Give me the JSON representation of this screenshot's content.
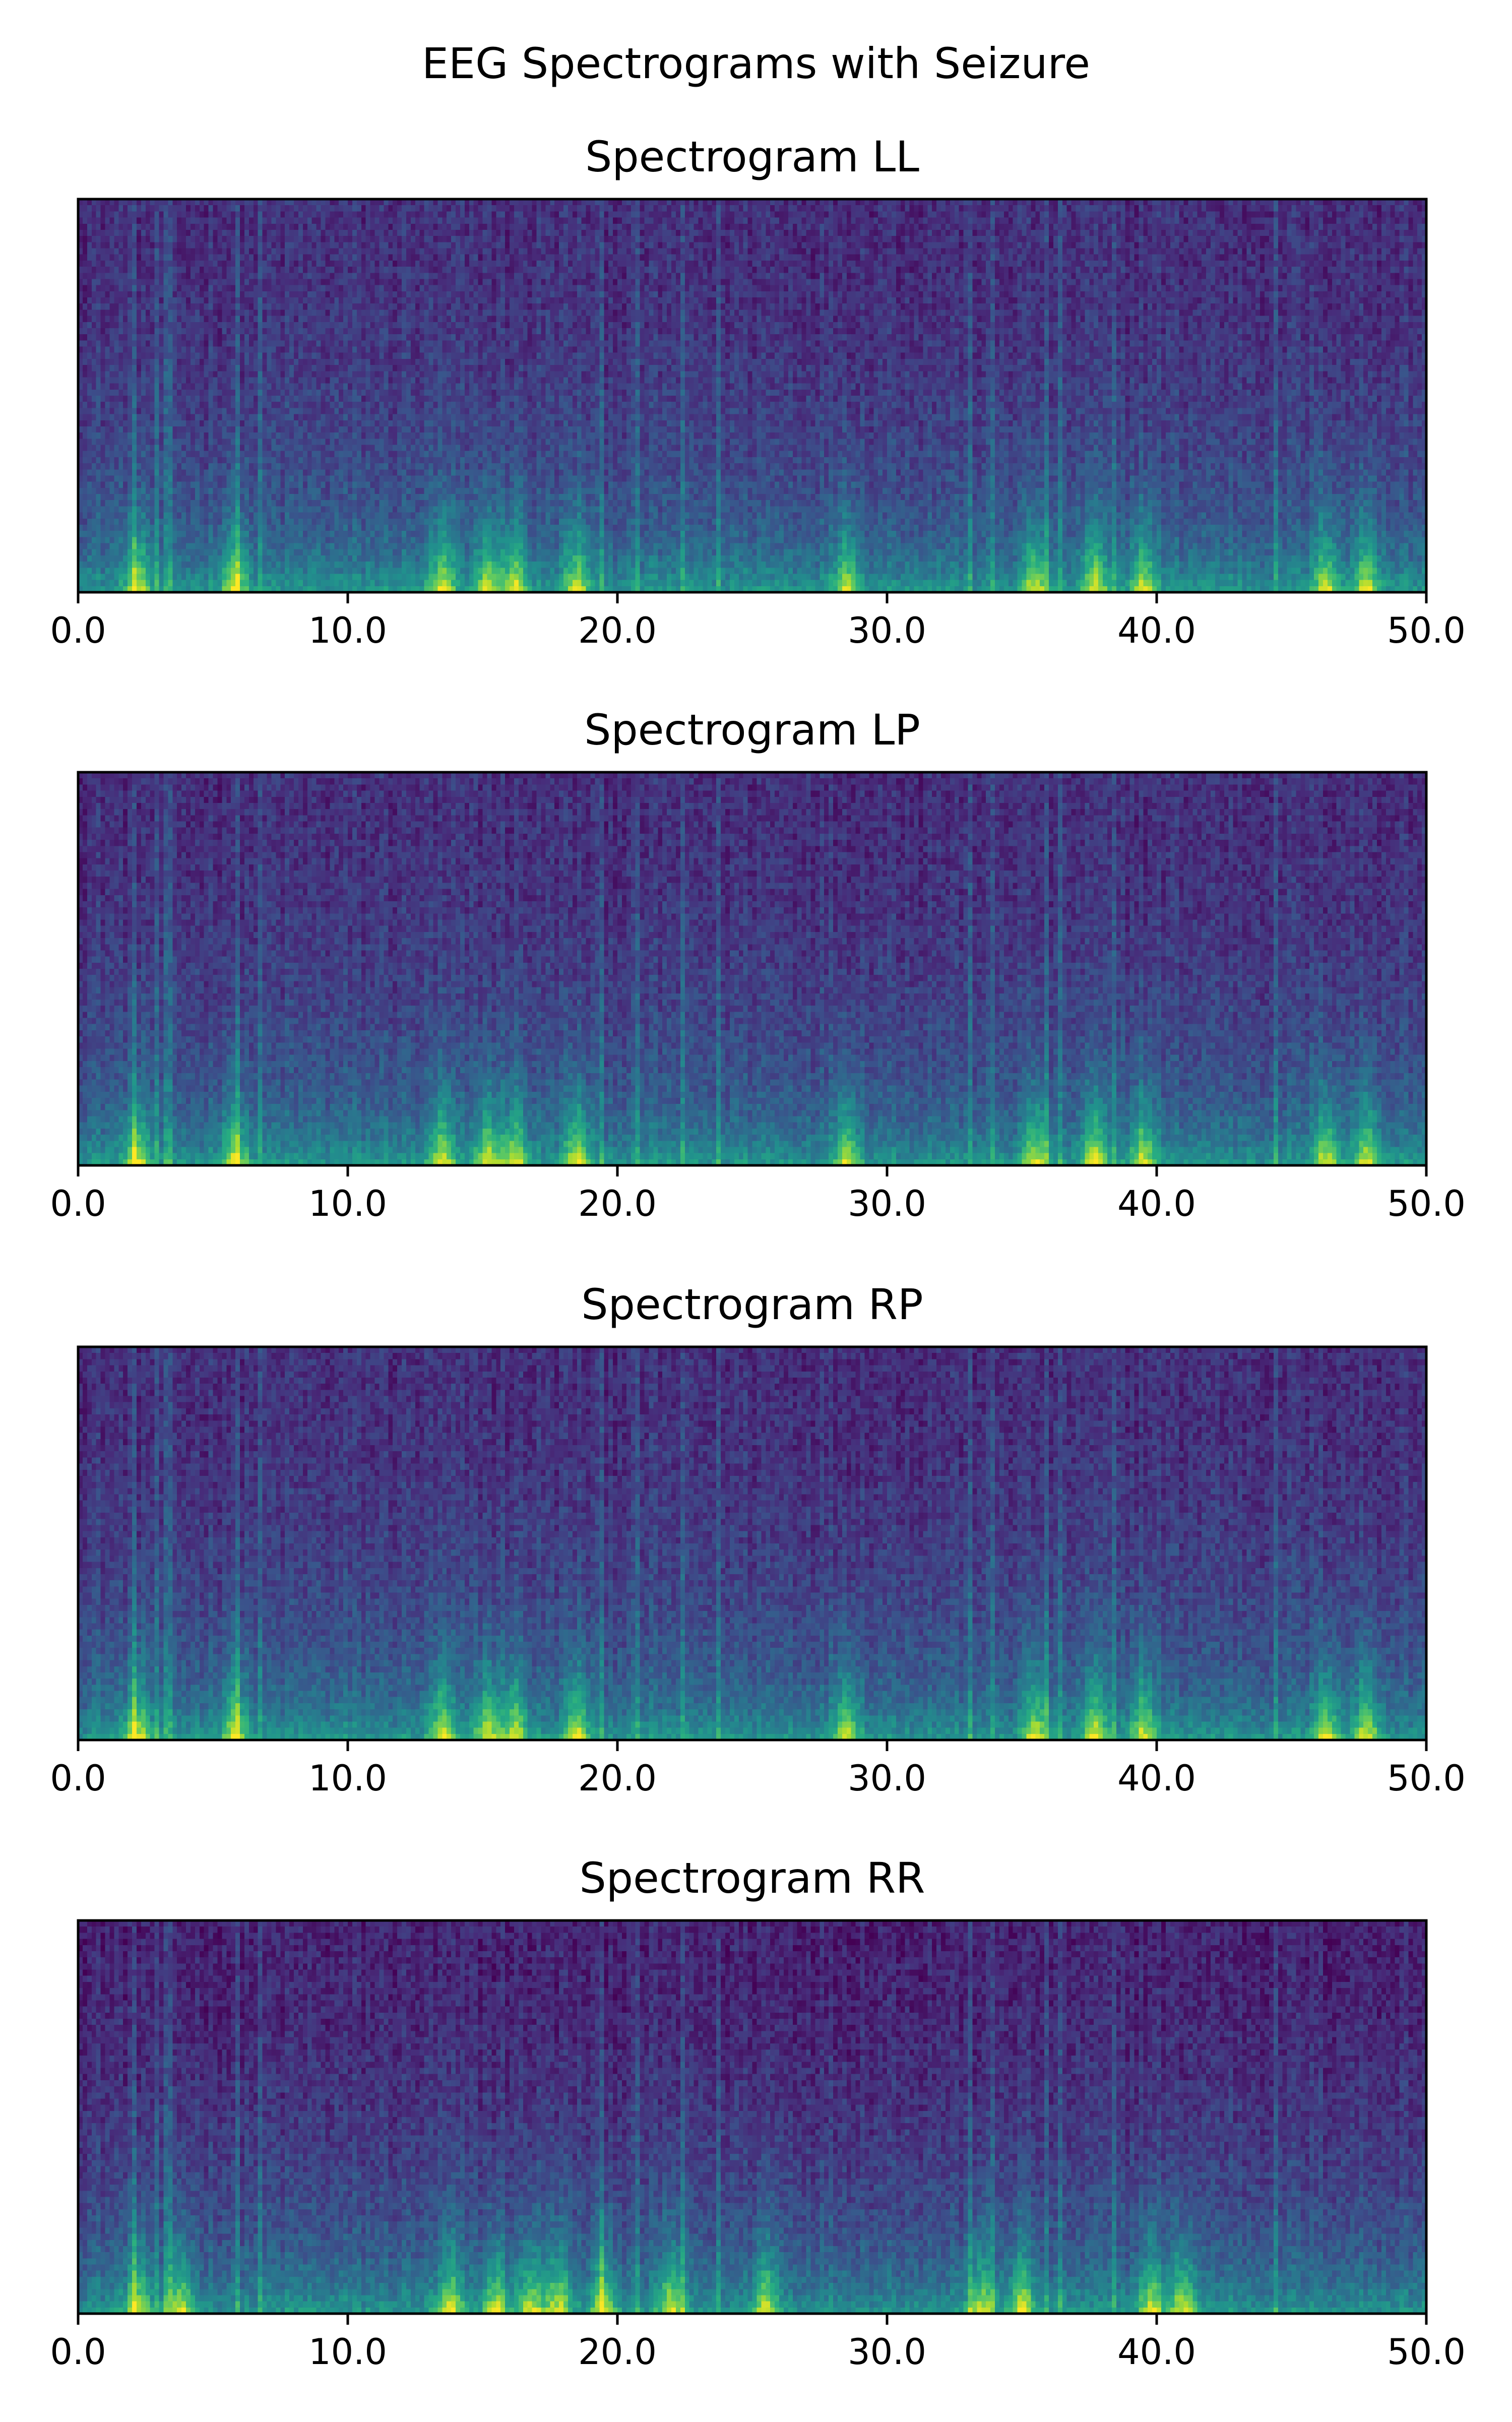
{
  "figure": {
    "title": "EEG Spectrograms with Seizure"
  },
  "chart_data": [
    {
      "type": "heatmap",
      "title": "Spectrogram LL",
      "xlabel": "",
      "ylabel": "",
      "xlim": [
        0,
        50
      ],
      "x_ticks": [
        "0.0",
        "10.0",
        "20.0",
        "30.0",
        "40.0",
        "50.0"
      ],
      "y_ticks": [],
      "colormap": "viridis",
      "grid": false,
      "description_of_values": "rows = frequency bins (low at bottom), columns = time; bright bands near bottom",
      "bright_time_columns": [
        2.2,
        5.8,
        13.5,
        15.2,
        16.2,
        18.5,
        28.5,
        35.5,
        37.7,
        39.5,
        46.3,
        47.8
      ]
    },
    {
      "type": "heatmap",
      "title": "Spectrogram LP",
      "xlabel": "",
      "ylabel": "",
      "xlim": [
        0,
        50
      ],
      "x_ticks": [
        "0.0",
        "10.0",
        "20.0",
        "30.0",
        "40.0",
        "50.0"
      ],
      "y_ticks": [],
      "colormap": "viridis",
      "grid": false,
      "bright_time_columns": [
        2.2,
        5.8,
        13.5,
        15.2,
        16.2,
        18.5,
        28.5,
        35.5,
        37.7,
        39.5,
        46.3,
        47.8
      ]
    },
    {
      "type": "heatmap",
      "title": "Spectrogram RP",
      "xlabel": "",
      "ylabel": "",
      "xlim": [
        0,
        50
      ],
      "x_ticks": [
        "0.0",
        "10.0",
        "20.0",
        "30.0",
        "40.0",
        "50.0"
      ],
      "y_ticks": [],
      "colormap": "viridis",
      "grid": false,
      "bright_time_columns": [
        2.2,
        5.8,
        13.5,
        15.2,
        16.2,
        18.5,
        28.5,
        35.5,
        37.7,
        39.5,
        46.3,
        47.8
      ]
    },
    {
      "type": "heatmap",
      "title": "Spectrogram RR",
      "xlabel": "",
      "ylabel": "",
      "xlim": [
        0,
        50
      ],
      "x_ticks": [
        "0.0",
        "10.0",
        "20.0",
        "30.0",
        "40.0",
        "50.0"
      ],
      "y_ticks": [],
      "colormap": "viridis",
      "grid": false,
      "bright_time_columns": [
        2.2,
        3.8,
        13.8,
        15.5,
        16.8,
        17.8,
        19.5,
        22.0,
        25.5,
        33.5,
        35.0,
        39.8,
        41.0
      ]
    }
  ]
}
